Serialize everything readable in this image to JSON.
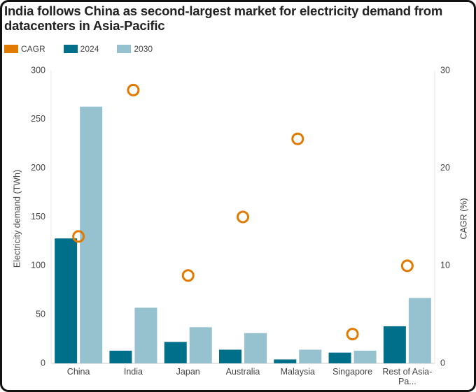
{
  "chart_data": {
    "type": "bar",
    "title": "India follows China as second-largest market for electricity demand from datacenters in Asia-Pacific",
    "y_label": "Electricity demand (TWh)",
    "y2_label": "CAGR (%)",
    "categories": [
      "China",
      "India",
      "Japan",
      "Australia",
      "Malaysia",
      "Singapore",
      "Rest of Asia-Pa..."
    ],
    "series": [
      {
        "name": "CAGR",
        "color": "#e07b00",
        "type": "scatter",
        "axis": "y2",
        "values": [
          13,
          28,
          9,
          15,
          23,
          3,
          10
        ]
      },
      {
        "name": "2024",
        "color": "#006f8a",
        "values": [
          128,
          13,
          22,
          14,
          4,
          11,
          38
        ]
      },
      {
        "name": "2030",
        "color": "#96c1cf",
        "values": [
          263,
          57,
          37,
          31,
          14,
          13,
          67
        ]
      }
    ],
    "ylim": [
      0,
      300
    ],
    "yticks": [
      0,
      50,
      100,
      150,
      200,
      250,
      300
    ],
    "y2lim": [
      0,
      30
    ],
    "y2ticks": [
      0,
      10,
      20,
      30
    ],
    "grid": false
  }
}
